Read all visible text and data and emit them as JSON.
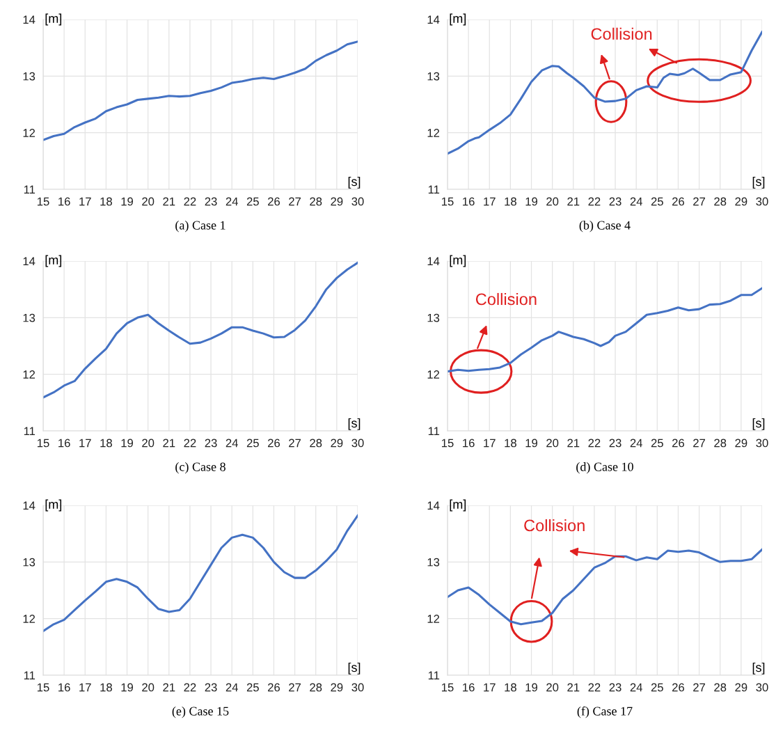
{
  "chart_data": [
    {
      "type": "line",
      "title": "(a) Case 1",
      "xlabel": "[s]",
      "ylabel": "[m]",
      "xlim": [
        15,
        30
      ],
      "ylim": [
        11,
        14
      ],
      "xticks": [
        15,
        16,
        17,
        18,
        19,
        20,
        21,
        22,
        23,
        24,
        25,
        26,
        27,
        28,
        29,
        30
      ],
      "yticks": [
        11,
        12,
        13,
        14
      ],
      "grid": true,
      "x": [
        15,
        15.5,
        16,
        16.5,
        17,
        17.5,
        18,
        18.5,
        19,
        19.5,
        20,
        20.5,
        21,
        21.5,
        22,
        22.5,
        23,
        23.5,
        24,
        24.5,
        25,
        25.5,
        26,
        26.5,
        27,
        27.5,
        28,
        28.5,
        29,
        29.5,
        30
      ],
      "series": [
        {
          "color": "#4472c4",
          "values": [
            11.87,
            11.94,
            11.98,
            12.1,
            12.18,
            12.25,
            12.38,
            12.45,
            12.5,
            12.58,
            12.6,
            12.62,
            12.65,
            12.64,
            12.65,
            12.7,
            12.74,
            12.8,
            12.88,
            12.91,
            12.95,
            12.97,
            12.95,
            13.0,
            13.06,
            13.13,
            13.27,
            13.37,
            13.45,
            13.56,
            13.61
          ]
        }
      ]
    },
    {
      "type": "line",
      "title": "(b) Case 4",
      "xlabel": "[s]",
      "ylabel": "[m]",
      "xlim": [
        15,
        30
      ],
      "ylim": [
        11,
        14
      ],
      "xticks": [
        15,
        16,
        17,
        18,
        19,
        20,
        21,
        22,
        23,
        24,
        25,
        26,
        27,
        28,
        29,
        30
      ],
      "yticks": [
        11,
        12,
        13,
        14
      ],
      "grid": true,
      "x": [
        15,
        15.5,
        16,
        16.3,
        16.5,
        17,
        17.5,
        18,
        18.5,
        19,
        19.5,
        20,
        20.3,
        20.7,
        21,
        21.5,
        22,
        22.5,
        23,
        23.5,
        24,
        24.5,
        25,
        25.3,
        25.6,
        26,
        26.3,
        26.7,
        27,
        27.5,
        28,
        28.5,
        29,
        29.5,
        30
      ],
      "series": [
        {
          "color": "#4472c4",
          "values": [
            11.63,
            11.72,
            11.85,
            11.9,
            11.92,
            12.05,
            12.17,
            12.32,
            12.6,
            12.9,
            13.1,
            13.18,
            13.17,
            13.05,
            12.97,
            12.82,
            12.62,
            12.55,
            12.56,
            12.6,
            12.75,
            12.82,
            12.8,
            12.97,
            13.04,
            13.02,
            13.05,
            13.13,
            13.06,
            12.93,
            12.93,
            13.03,
            13.07,
            13.45,
            13.78
          ]
        }
      ],
      "annotations": [
        "Collision"
      ]
    },
    {
      "type": "line",
      "title": "(c) Case 8",
      "xlabel": "[s]",
      "ylabel": "[m]",
      "xlim": [
        15,
        30
      ],
      "ylim": [
        11,
        14
      ],
      "xticks": [
        15,
        16,
        17,
        18,
        19,
        20,
        21,
        22,
        23,
        24,
        25,
        26,
        27,
        28,
        29,
        30
      ],
      "yticks": [
        11,
        12,
        13,
        14
      ],
      "grid": true,
      "x": [
        15,
        15.5,
        16,
        16.5,
        17,
        17.5,
        18,
        18.5,
        19,
        19.5,
        20,
        20.5,
        21,
        21.5,
        22,
        22.5,
        23,
        23.5,
        24,
        24.5,
        25,
        25.5,
        26,
        26.5,
        27,
        27.5,
        28,
        28.5,
        29,
        29.5,
        30
      ],
      "series": [
        {
          "color": "#4472c4",
          "values": [
            11.59,
            11.68,
            11.8,
            11.88,
            12.1,
            12.28,
            12.45,
            12.72,
            12.9,
            13.0,
            13.05,
            12.9,
            12.77,
            12.65,
            12.54,
            12.56,
            12.63,
            12.72,
            12.83,
            12.83,
            12.77,
            12.72,
            12.65,
            12.66,
            12.78,
            12.95,
            13.2,
            13.5,
            13.7,
            13.85,
            13.97
          ]
        }
      ]
    },
    {
      "type": "line",
      "title": "(d) Case 10",
      "xlabel": "[s]",
      "ylabel": "[m]",
      "xlim": [
        15,
        30
      ],
      "ylim": [
        11,
        14
      ],
      "xticks": [
        15,
        16,
        17,
        18,
        19,
        20,
        21,
        22,
        23,
        24,
        25,
        26,
        27,
        28,
        29,
        30
      ],
      "yticks": [
        11,
        12,
        13,
        14
      ],
      "grid": true,
      "x": [
        15,
        15.5,
        16,
        16.5,
        17,
        17.5,
        18,
        18.5,
        19,
        19.5,
        20,
        20.3,
        20.7,
        21,
        21.5,
        22,
        22.3,
        22.7,
        23,
        23.5,
        24,
        24.5,
        25,
        25.5,
        26,
        26.5,
        27,
        27.5,
        28,
        28.5,
        29,
        29.5,
        30
      ],
      "series": [
        {
          "color": "#4472c4",
          "values": [
            12.05,
            12.08,
            12.06,
            12.08,
            12.09,
            12.12,
            12.2,
            12.35,
            12.47,
            12.6,
            12.68,
            12.75,
            12.7,
            12.66,
            12.62,
            12.55,
            12.5,
            12.57,
            12.68,
            12.75,
            12.9,
            13.05,
            13.08,
            13.12,
            13.18,
            13.13,
            13.15,
            13.23,
            13.24,
            13.3,
            13.4,
            13.4,
            13.52
          ]
        }
      ],
      "annotations": [
        "Collision"
      ]
    },
    {
      "type": "line",
      "title": "(e) Case 15",
      "xlabel": "[s]",
      "ylabel": "[m]",
      "xlim": [
        15,
        30
      ],
      "ylim": [
        11,
        14
      ],
      "xticks": [
        15,
        16,
        17,
        18,
        19,
        20,
        21,
        22,
        23,
        24,
        25,
        26,
        27,
        28,
        29,
        30
      ],
      "yticks": [
        11,
        12,
        13,
        14
      ],
      "grid": true,
      "x": [
        15,
        15.5,
        16,
        16.5,
        17,
        17.5,
        18,
        18.5,
        19,
        19.5,
        20,
        20.5,
        21,
        21.5,
        22,
        22.5,
        23,
        23.5,
        24,
        24.5,
        25,
        25.5,
        26,
        26.5,
        27,
        27.5,
        28,
        28.5,
        29,
        29.5,
        30
      ],
      "series": [
        {
          "color": "#4472c4",
          "values": [
            11.78,
            11.9,
            11.98,
            12.15,
            12.32,
            12.48,
            12.65,
            12.7,
            12.65,
            12.55,
            12.35,
            12.17,
            12.12,
            12.15,
            12.35,
            12.65,
            12.95,
            13.25,
            13.43,
            13.48,
            13.43,
            13.25,
            13.0,
            12.82,
            12.72,
            12.72,
            12.85,
            13.02,
            13.22,
            13.55,
            13.82
          ]
        }
      ]
    },
    {
      "type": "line",
      "title": "(f) Case 17",
      "xlabel": "[s]",
      "ylabel": "[m]",
      "xlim": [
        15,
        30
      ],
      "ylim": [
        11,
        14
      ],
      "xticks": [
        15,
        16,
        17,
        18,
        19,
        20,
        21,
        22,
        23,
        24,
        25,
        26,
        27,
        28,
        29,
        30
      ],
      "yticks": [
        11,
        12,
        13,
        14
      ],
      "grid": true,
      "x": [
        15,
        15.5,
        16,
        16.5,
        17,
        17.5,
        18,
        18.5,
        19,
        19.5,
        20,
        20.5,
        21,
        21.5,
        22,
        22.5,
        23,
        23.5,
        24,
        24.5,
        25,
        25.5,
        26,
        26.5,
        27,
        27.5,
        28,
        28.5,
        29,
        29.5,
        30
      ],
      "series": [
        {
          "color": "#4472c4",
          "values": [
            12.38,
            12.5,
            12.55,
            12.42,
            12.25,
            12.1,
            11.95,
            11.9,
            11.93,
            11.96,
            12.1,
            12.35,
            12.5,
            12.7,
            12.9,
            12.98,
            13.1,
            13.1,
            13.03,
            13.08,
            13.05,
            13.2,
            13.18,
            13.2,
            13.17,
            13.08,
            13.0,
            13.02,
            13.02,
            13.05,
            13.22
          ]
        }
      ],
      "annotations": [
        "Collision"
      ]
    }
  ]
}
